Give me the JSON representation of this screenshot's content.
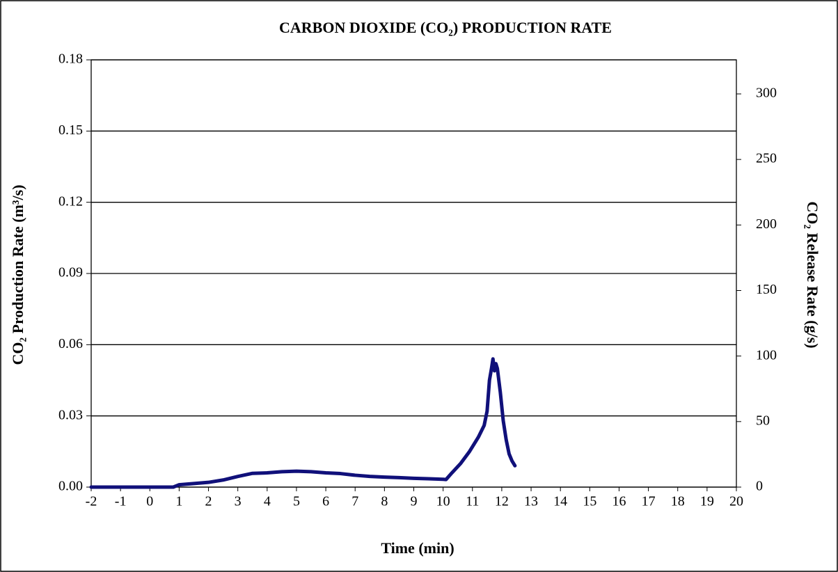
{
  "chart_data": {
    "type": "line",
    "title": "CARBON DIOXIDE (CO₂) PRODUCTION RATE",
    "x_label": "Time (min)",
    "y_label": "CO₂ Production Rate (m³/s)",
    "y2_label": "CO₂ Release Rate (g/s)",
    "xlim": [
      -2,
      20
    ],
    "xticks": [
      -2,
      -1,
      0,
      1,
      2,
      3,
      4,
      5,
      6,
      7,
      8,
      9,
      10,
      11,
      12,
      13,
      14,
      15,
      16,
      17,
      18,
      19,
      20
    ],
    "ylim": [
      0,
      0.18
    ],
    "yticks": [
      {
        "value": 0,
        "label": "0.00"
      },
      0.03,
      0.06,
      0.09,
      0.12,
      0.15,
      0.18
    ],
    "y2lim": [
      0,
      326
    ],
    "y2ticks": [
      0,
      50,
      100,
      150,
      200,
      250,
      300
    ],
    "grid": true,
    "x": [
      -2,
      -1,
      0,
      0.8,
      1,
      1.5,
      2,
      2.5,
      3,
      3.5,
      4,
      4.5,
      5,
      5.5,
      6,
      6.5,
      7,
      7.5,
      8,
      8.5,
      9,
      9.5,
      10,
      10.1,
      10.3,
      10.6,
      10.9,
      11.2,
      11.4,
      11.5,
      11.58,
      11.65,
      11.7,
      11.75,
      11.8,
      11.85,
      11.95,
      12.05,
      12.15,
      12.25,
      12.35,
      12.45
    ],
    "series": [
      {
        "name": "CO₂ Production Rate",
        "color": "#10107a",
        "values": [
          0,
          0,
          0,
          0,
          0.001,
          0.0015,
          0.002,
          0.003,
          0.0045,
          0.0058,
          0.006,
          0.0065,
          0.0067,
          0.0065,
          0.006,
          0.0057,
          0.005,
          0.0045,
          0.0042,
          0.004,
          0.0037,
          0.0035,
          0.0033,
          0.0032,
          0.006,
          0.01,
          0.015,
          0.021,
          0.026,
          0.032,
          0.045,
          0.05,
          0.054,
          0.049,
          0.052,
          0.05,
          0.04,
          0.028,
          0.02,
          0.014,
          0.011,
          0.009
        ]
      }
    ]
  }
}
